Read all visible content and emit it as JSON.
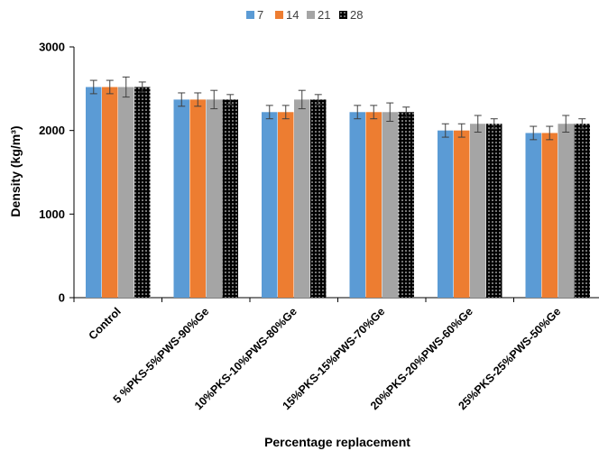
{
  "chart_data": {
    "type": "bar",
    "categories": [
      "Control",
      "5 %PKS-5%PWS-90%Ge",
      "10%PKS-10%PWS-80%Ge",
      "15%PKS-15%PWS-70%Ge",
      "20%PKS-20%PWS-60%Ge",
      "25%PKS-25%PWS-50%Ge"
    ],
    "series": [
      {
        "name": "7",
        "color": "#5b9bd5",
        "pattern": "solid",
        "values": [
          2520,
          2370,
          2220,
          2220,
          2000,
          1970
        ],
        "errors": [
          80,
          80,
          80,
          80,
          80,
          80
        ]
      },
      {
        "name": "14",
        "color": "#ed7d31",
        "pattern": "solid",
        "values": [
          2520,
          2370,
          2220,
          2220,
          2000,
          1970
        ],
        "errors": [
          80,
          80,
          80,
          80,
          80,
          80
        ]
      },
      {
        "name": "21",
        "color": "#a5a5a5",
        "pattern": "solid",
        "values": [
          2520,
          2370,
          2370,
          2220,
          2080,
          2080
        ],
        "errors": [
          120,
          110,
          110,
          110,
          100,
          100
        ]
      },
      {
        "name": "28",
        "color": "#000000",
        "pattern": "dotted",
        "values": [
          2520,
          2370,
          2370,
          2220,
          2080,
          2080
        ],
        "errors": [
          60,
          60,
          60,
          60,
          60,
          60
        ]
      }
    ],
    "xlabel": "Percentage replacement",
    "ylabel": "Density (kg/m³)",
    "ylim": [
      0,
      3000
    ],
    "yticks": [
      0,
      1000,
      2000,
      3000
    ],
    "grid": false,
    "legend_position": "top-center"
  }
}
